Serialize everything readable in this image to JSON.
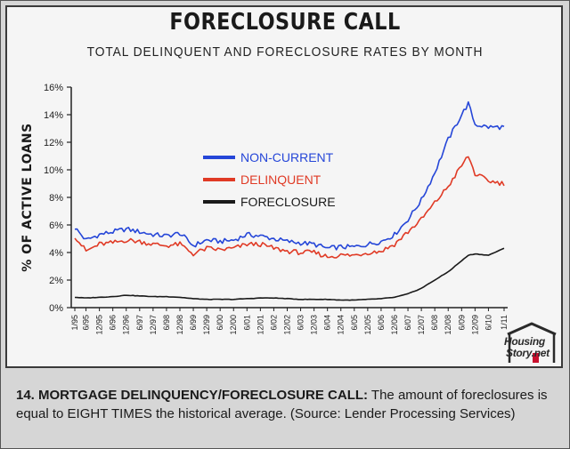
{
  "title": "FORECLOSURE CALL",
  "subtitle": "TOTAL DELINQUENT AND FORECLOSURE RATES BY MONTH",
  "caption": {
    "label": "14. MORTGAGE DELINQUENCY/FORECLOSURE CALL:",
    "text": " The amount of foreclosures is equal to EIGHT TIMES the historical average. (Source: Lender Processing Services)"
  },
  "logo": {
    "line1": "Housing",
    "line2": "Story.net"
  },
  "colors": {
    "non_current": "#2546d8",
    "delinquent": "#e03a25",
    "foreclosure": "#1a1a1a",
    "panel": "#f5f5f5",
    "caption_bg": "#d6d6d6"
  },
  "chart_data": {
    "type": "line",
    "title": "FORECLOSURE CALL",
    "subtitle": "TOTAL DELINQUENT AND FORECLOSURE RATES BY MONTH",
    "xlabel": "",
    "ylabel": "% OF ACTIVE LOANS",
    "ylim": [
      0,
      16
    ],
    "yticks": [
      0,
      2,
      4,
      6,
      8,
      10,
      12,
      14,
      16
    ],
    "ytick_labels": [
      "0%",
      "2%",
      "4%",
      "6%",
      "8%",
      "10%",
      "12%",
      "14%",
      "16%"
    ],
    "xtick_labels": [
      "1/95",
      "6/95",
      "12/95",
      "6/96",
      "12/96",
      "6/97",
      "12/97",
      "6/98",
      "12/98",
      "6/99",
      "12/99",
      "6/00",
      "12/00",
      "6/01",
      "12/01",
      "6/02",
      "12/02",
      "6/03",
      "12/03",
      "6/04",
      "12/04",
      "6/05",
      "12/05",
      "6/06",
      "12/06",
      "6/07",
      "12/07",
      "6/08",
      "12/08",
      "6/09",
      "12/09",
      "6/10",
      "1/11"
    ],
    "grid": false,
    "legend_position": "left",
    "series": [
      {
        "name": "NON-CURRENT",
        "x": [
          "1/95",
          "6/95",
          "12/95",
          "6/96",
          "12/96",
          "6/97",
          "12/97",
          "6/98",
          "12/98",
          "6/99",
          "12/99",
          "6/00",
          "12/00",
          "6/01",
          "12/01",
          "6/02",
          "12/02",
          "6/03",
          "12/03",
          "6/04",
          "12/04",
          "6/05",
          "12/05",
          "6/06",
          "12/06",
          "6/07",
          "12/07",
          "6/08",
          "12/08",
          "6/09",
          "9/09",
          "12/09",
          "6/10",
          "1/11"
        ],
        "values": [
          5.8,
          4.9,
          5.3,
          5.5,
          5.7,
          5.5,
          5.3,
          5.2,
          5.4,
          4.5,
          4.9,
          4.8,
          4.9,
          5.3,
          5.2,
          5.0,
          4.8,
          4.7,
          4.6,
          4.3,
          4.4,
          4.4,
          4.6,
          4.8,
          5.3,
          6.4,
          7.8,
          9.8,
          12.2,
          14.0,
          14.8,
          13.3,
          13.1,
          13.1
        ]
      },
      {
        "name": "DELINQUENT",
        "x": [
          "1/95",
          "6/95",
          "12/95",
          "6/96",
          "12/96",
          "6/97",
          "12/97",
          "6/98",
          "12/98",
          "6/99",
          "12/99",
          "6/00",
          "12/00",
          "6/01",
          "12/01",
          "6/02",
          "12/02",
          "6/03",
          "12/03",
          "6/04",
          "12/04",
          "6/05",
          "12/05",
          "6/06",
          "12/06",
          "6/07",
          "12/07",
          "6/08",
          "12/08",
          "6/09",
          "9/09",
          "12/09",
          "6/10",
          "1/11"
        ],
        "values": [
          5.2,
          4.1,
          4.6,
          4.7,
          4.9,
          4.8,
          4.6,
          4.5,
          4.6,
          3.9,
          4.3,
          4.2,
          4.3,
          4.6,
          4.6,
          4.3,
          4.1,
          4.0,
          4.0,
          3.7,
          3.8,
          3.8,
          4.0,
          4.1,
          4.6,
          5.5,
          6.4,
          7.6,
          8.8,
          10.3,
          11.0,
          9.7,
          9.2,
          9.0
        ]
      },
      {
        "name": "FORECLOSURE",
        "x": [
          "1/95",
          "6/95",
          "12/95",
          "6/96",
          "12/96",
          "6/97",
          "12/97",
          "6/98",
          "12/98",
          "6/99",
          "12/99",
          "6/00",
          "12/00",
          "6/01",
          "12/01",
          "6/02",
          "12/02",
          "6/03",
          "12/03",
          "6/04",
          "12/04",
          "6/05",
          "12/05",
          "6/06",
          "12/06",
          "6/07",
          "12/07",
          "6/08",
          "12/08",
          "6/09",
          "9/09",
          "12/09",
          "6/10",
          "1/11"
        ],
        "values": [
          0.75,
          0.7,
          0.75,
          0.8,
          0.9,
          0.85,
          0.8,
          0.8,
          0.75,
          0.65,
          0.6,
          0.6,
          0.6,
          0.65,
          0.7,
          0.7,
          0.65,
          0.6,
          0.6,
          0.6,
          0.55,
          0.55,
          0.6,
          0.65,
          0.75,
          1.0,
          1.4,
          2.0,
          2.6,
          3.4,
          3.8,
          3.9,
          3.8,
          4.3
        ]
      }
    ]
  }
}
